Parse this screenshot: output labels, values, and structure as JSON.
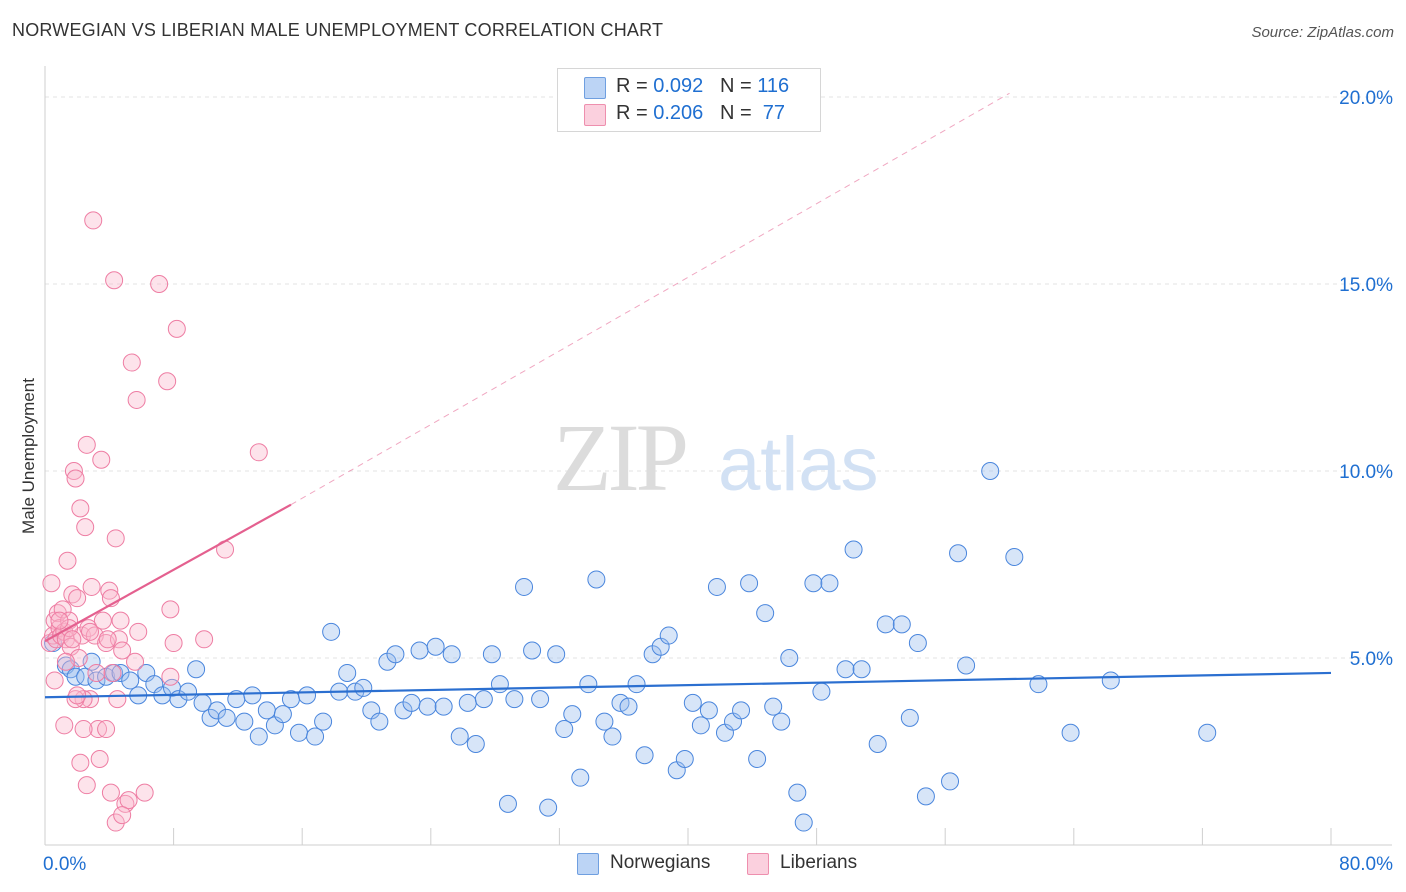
{
  "title": "NORWEGIAN VS LIBERIAN MALE UNEMPLOYMENT CORRELATION CHART",
  "source": "Source: ZipAtlas.com",
  "watermark": {
    "zip": "ZIP",
    "atlas": "atlas"
  },
  "stats": [
    {
      "r_label": "R = ",
      "r_value": "0.092",
      "n_label": "N = ",
      "n_value": "116",
      "color": "#9dbfee",
      "border": "#6f9fe0"
    },
    {
      "r_label": "R = ",
      "r_value": "0.206",
      "n_label": "N = ",
      "n_value": " 77",
      "color": "#f9b8cd",
      "border": "#ee8fae"
    }
  ],
  "legend": [
    {
      "label": "Norwegians",
      "color": "#9dbfee"
    },
    {
      "label": "Liberians",
      "color": "#f9b8cd"
    }
  ],
  "chart_data": {
    "type": "scatter",
    "title": "NORWEGIAN VS LIBERIAN MALE UNEMPLOYMENT CORRELATION CHART",
    "xlabel": "",
    "ylabel": "Male Unemployment",
    "xlim": [
      0,
      80
    ],
    "ylim": [
      0,
      20.5
    ],
    "x_tick_labels": [
      "0.0%",
      "80.0%"
    ],
    "y_ticks": [
      5,
      10,
      15,
      20
    ],
    "y_tick_labels": [
      "5.0%",
      "10.0%",
      "15.0%",
      "20.0%"
    ],
    "grid": "horizontal dashed",
    "legend_position": "bottom-center",
    "series": [
      {
        "name": "Norwegians",
        "color": "#4a86dd",
        "fill": "rgba(155,190,238,0.40)",
        "trend": {
          "x": [
            0,
            80
          ],
          "y": [
            3.95,
            4.6
          ],
          "style": "solid",
          "color": "#2b6fd0"
        },
        "points": [
          [
            1.3,
            4.8
          ],
          [
            1.6,
            4.7
          ],
          [
            1.9,
            4.5
          ],
          [
            2.5,
            4.5
          ],
          [
            2.9,
            4.9
          ],
          [
            3.2,
            4.4
          ],
          [
            3.8,
            4.5
          ],
          [
            4.3,
            4.6
          ],
          [
            4.7,
            4.6
          ],
          [
            5.3,
            4.4
          ],
          [
            5.8,
            4.0
          ],
          [
            6.3,
            4.6
          ],
          [
            6.8,
            4.3
          ],
          [
            7.3,
            4.0
          ],
          [
            7.9,
            4.2
          ],
          [
            8.3,
            3.9
          ],
          [
            8.9,
            4.1
          ],
          [
            9.4,
            4.7
          ],
          [
            9.8,
            3.8
          ],
          [
            10.3,
            3.4
          ],
          [
            10.7,
            3.6
          ],
          [
            11.3,
            3.4
          ],
          [
            11.9,
            3.9
          ],
          [
            12.4,
            3.3
          ],
          [
            12.9,
            4.0
          ],
          [
            13.3,
            2.9
          ],
          [
            13.8,
            3.6
          ],
          [
            14.3,
            3.2
          ],
          [
            14.8,
            3.5
          ],
          [
            15.3,
            3.9
          ],
          [
            15.8,
            3.0
          ],
          [
            16.3,
            4.0
          ],
          [
            16.8,
            2.9
          ],
          [
            17.3,
            3.3
          ],
          [
            17.8,
            5.7
          ],
          [
            18.3,
            4.1
          ],
          [
            18.8,
            4.6
          ],
          [
            19.3,
            4.1
          ],
          [
            19.8,
            4.2
          ],
          [
            20.3,
            3.6
          ],
          [
            20.8,
            3.3
          ],
          [
            21.3,
            4.9
          ],
          [
            21.8,
            5.1
          ],
          [
            22.3,
            3.6
          ],
          [
            22.8,
            3.8
          ],
          [
            23.3,
            5.2
          ],
          [
            23.8,
            3.7
          ],
          [
            24.3,
            5.3
          ],
          [
            24.8,
            3.7
          ],
          [
            25.3,
            5.1
          ],
          [
            25.8,
            2.9
          ],
          [
            26.3,
            3.8
          ],
          [
            26.8,
            2.7
          ],
          [
            27.3,
            3.9
          ],
          [
            27.8,
            5.1
          ],
          [
            28.3,
            4.3
          ],
          [
            28.8,
            1.1
          ],
          [
            29.2,
            3.9
          ],
          [
            29.8,
            6.9
          ],
          [
            30.3,
            5.2
          ],
          [
            30.8,
            3.9
          ],
          [
            31.3,
            1.0
          ],
          [
            31.8,
            5.1
          ],
          [
            32.3,
            3.1
          ],
          [
            32.8,
            3.5
          ],
          [
            33.3,
            1.8
          ],
          [
            33.8,
            4.3
          ],
          [
            34.3,
            7.1
          ],
          [
            34.8,
            3.3
          ],
          [
            35.3,
            2.9
          ],
          [
            35.8,
            3.8
          ],
          [
            36.3,
            3.7
          ],
          [
            36.8,
            4.3
          ],
          [
            37.3,
            2.4
          ],
          [
            37.8,
            5.1
          ],
          [
            38.3,
            5.3
          ],
          [
            38.8,
            5.6
          ],
          [
            39.3,
            2.0
          ],
          [
            39.8,
            2.3
          ],
          [
            40.3,
            3.8
          ],
          [
            40.8,
            3.2
          ],
          [
            41.3,
            3.6
          ],
          [
            41.8,
            6.9
          ],
          [
            42.3,
            3.0
          ],
          [
            42.8,
            3.3
          ],
          [
            43.3,
            3.6
          ],
          [
            43.8,
            7.0
          ],
          [
            44.3,
            2.3
          ],
          [
            44.8,
            6.2
          ],
          [
            45.3,
            3.7
          ],
          [
            45.8,
            3.3
          ],
          [
            46.3,
            5.0
          ],
          [
            46.8,
            1.4
          ],
          [
            47.2,
            0.6
          ],
          [
            47.8,
            7.0
          ],
          [
            48.3,
            4.1
          ],
          [
            48.8,
            7.0
          ],
          [
            49.8,
            4.7
          ],
          [
            50.3,
            7.9
          ],
          [
            50.8,
            4.7
          ],
          [
            51.8,
            2.7
          ],
          [
            52.3,
            5.9
          ],
          [
            53.3,
            5.9
          ],
          [
            53.8,
            3.4
          ],
          [
            54.3,
            5.4
          ],
          [
            54.8,
            1.3
          ],
          [
            56.3,
            1.7
          ],
          [
            56.8,
            7.8
          ],
          [
            57.3,
            4.8
          ],
          [
            58.8,
            10.0
          ],
          [
            60.3,
            7.7
          ],
          [
            61.8,
            4.3
          ],
          [
            63.8,
            3.0
          ],
          [
            66.3,
            4.4
          ],
          [
            72.3,
            3.0
          ],
          [
            0.5,
            5.4
          ]
        ]
      },
      {
        "name": "Liberians",
        "color": "#ee7da3",
        "fill": "rgba(249,184,205,0.40)",
        "trend": {
          "x": [
            0,
            15.3
          ],
          "y": [
            5.45,
            9.1
          ],
          "style": "solid",
          "color": "#e4608f",
          "extension": {
            "x": [
              15.3,
              60
            ],
            "y": [
              9.1,
              20.1
            ],
            "style": "dashed"
          }
        },
        "points": [
          [
            0.3,
            5.4
          ],
          [
            0.5,
            5.6
          ],
          [
            0.6,
            6.0
          ],
          [
            0.7,
            5.5
          ],
          [
            0.8,
            6.2
          ],
          [
            0.9,
            5.8
          ],
          [
            1.0,
            5.6
          ],
          [
            1.1,
            6.3
          ],
          [
            1.2,
            5.7
          ],
          [
            1.3,
            5.5
          ],
          [
            1.4,
            7.6
          ],
          [
            1.5,
            6.0
          ],
          [
            1.6,
            5.3
          ],
          [
            1.7,
            6.7
          ],
          [
            1.8,
            10.0
          ],
          [
            1.9,
            9.8
          ],
          [
            2.0,
            6.6
          ],
          [
            2.1,
            5.0
          ],
          [
            2.2,
            9.0
          ],
          [
            2.3,
            5.6
          ],
          [
            2.5,
            8.5
          ],
          [
            2.6,
            10.7
          ],
          [
            2.7,
            5.8
          ],
          [
            2.8,
            3.9
          ],
          [
            3.0,
            16.7
          ],
          [
            3.1,
            5.6
          ],
          [
            3.2,
            4.6
          ],
          [
            3.3,
            3.1
          ],
          [
            3.4,
            2.3
          ],
          [
            3.5,
            10.3
          ],
          [
            3.6,
            6.0
          ],
          [
            3.8,
            5.4
          ],
          [
            4.0,
            6.8
          ],
          [
            4.1,
            6.6
          ],
          [
            4.2,
            4.6
          ],
          [
            4.3,
            15.1
          ],
          [
            4.4,
            8.2
          ],
          [
            4.5,
            3.9
          ],
          [
            4.6,
            5.5
          ],
          [
            4.7,
            6.0
          ],
          [
            4.8,
            5.2
          ],
          [
            5.0,
            1.1
          ],
          [
            5.2,
            1.2
          ],
          [
            5.4,
            12.9
          ],
          [
            5.6,
            4.9
          ],
          [
            5.7,
            11.9
          ],
          [
            5.8,
            5.7
          ],
          [
            6.2,
            1.4
          ],
          [
            7.1,
            15.0
          ],
          [
            7.6,
            12.4
          ],
          [
            8.2,
            13.8
          ],
          [
            7.8,
            4.5
          ],
          [
            7.8,
            6.3
          ],
          [
            8.0,
            5.4
          ],
          [
            9.9,
            5.5
          ],
          [
            11.2,
            7.9
          ],
          [
            13.3,
            10.5
          ],
          [
            2.9,
            6.9
          ],
          [
            2.4,
            3.9
          ],
          [
            1.2,
            3.2
          ],
          [
            1.5,
            5.8
          ],
          [
            1.9,
            3.9
          ],
          [
            2.0,
            4.0
          ],
          [
            2.2,
            2.2
          ],
          [
            2.6,
            1.6
          ],
          [
            3.9,
            5.5
          ],
          [
            4.4,
            0.6
          ],
          [
            4.8,
            0.8
          ],
          [
            0.4,
            7.0
          ],
          [
            0.6,
            4.4
          ],
          [
            0.9,
            6.0
          ],
          [
            1.3,
            4.9
          ],
          [
            1.7,
            5.5
          ],
          [
            2.4,
            3.1
          ],
          [
            3.8,
            3.1
          ],
          [
            4.1,
            1.4
          ],
          [
            2.8,
            5.7
          ]
        ]
      }
    ]
  }
}
